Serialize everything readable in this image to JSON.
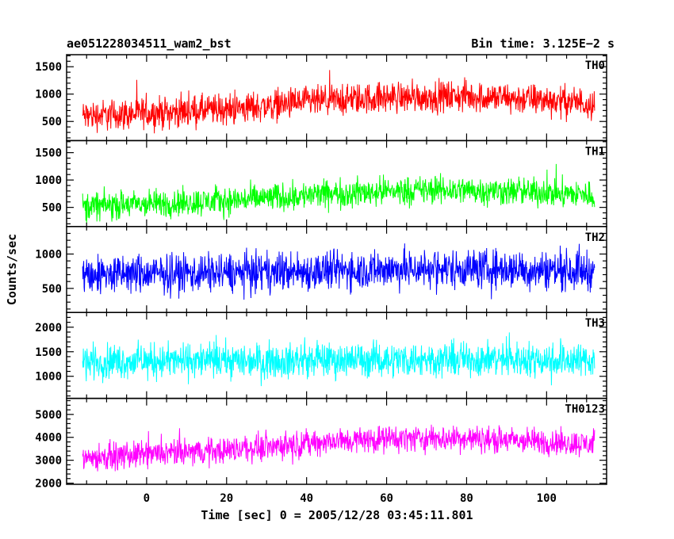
{
  "header": {
    "title": "ae051228034511_wam2_bst",
    "bin_time": "Bin time: 3.125E−2 s"
  },
  "chart_data": {
    "type": "line",
    "xlabel": "Time [sec] 0 = 2005/12/28 03:45:11.801",
    "ylabel": "Counts/sec",
    "xlim": [
      -20,
      115
    ],
    "x_ticks": [
      0,
      20,
      40,
      60,
      80,
      100
    ],
    "x_tick_labels": [
      "0",
      "20",
      "40",
      "60",
      "80",
      "100"
    ],
    "data_x_range": [
      -16,
      112
    ],
    "bin_time_s": 0.03125,
    "panels": [
      {
        "name": "TH0",
        "color": "#ff0000",
        "ylim": [
          150,
          1720
        ],
        "y_ticks": [
          500,
          1000,
          1500
        ],
        "y_tick_labels": [
          "500",
          "1000",
          "1500"
        ],
        "trend_x": [
          -16,
          0,
          20,
          40,
          60,
          80,
          100,
          112
        ],
        "trend_mean": [
          600,
          650,
          720,
          850,
          940,
          960,
          890,
          830
        ],
        "noise_halfwidth": 420
      },
      {
        "name": "TH1",
        "color": "#00ff00",
        "ylim": [
          150,
          1720
        ],
        "y_ticks": [
          500,
          1000,
          1500
        ],
        "y_tick_labels": [
          "500",
          "1000",
          "1500"
        ],
        "trend_x": [
          -16,
          0,
          20,
          40,
          60,
          80,
          100,
          112
        ],
        "trend_mean": [
          520,
          560,
          620,
          720,
          800,
          820,
          770,
          720
        ],
        "noise_halfwidth": 380
      },
      {
        "name": "TH2",
        "color": "#0000ff",
        "ylim": [
          150,
          1400
        ],
        "y_ticks": [
          500,
          1000
        ],
        "y_tick_labels": [
          "500",
          "1000"
        ],
        "trend_x": [
          -16,
          0,
          20,
          40,
          60,
          80,
          100,
          112
        ],
        "trend_mean": [
          700,
          710,
          730,
          750,
          780,
          790,
          770,
          760
        ],
        "noise_halfwidth": 420
      },
      {
        "name": "TH3",
        "color": "#00ffff",
        "ylim": [
          550,
          2300
        ],
        "y_ticks": [
          1000,
          1500,
          2000
        ],
        "y_tick_labels": [
          "1000",
          "1500",
          "2000"
        ],
        "trend_x": [
          -16,
          0,
          20,
          40,
          60,
          80,
          100,
          112
        ],
        "trend_mean": [
          1300,
          1310,
          1320,
          1330,
          1340,
          1350,
          1340,
          1330
        ],
        "noise_halfwidth": 520
      },
      {
        "name": "TH0123",
        "color": "#ff00ff",
        "ylim": [
          1950,
          5700
        ],
        "y_ticks": [
          2000,
          3000,
          4000,
          5000
        ],
        "y_tick_labels": [
          "2000",
          "3000",
          "4000",
          "5000"
        ],
        "trend_x": [
          -16,
          0,
          20,
          40,
          60,
          80,
          100,
          112
        ],
        "trend_mean": [
          3100,
          3250,
          3450,
          3750,
          3950,
          3950,
          3800,
          3700
        ],
        "noise_halfwidth": 850
      }
    ]
  }
}
